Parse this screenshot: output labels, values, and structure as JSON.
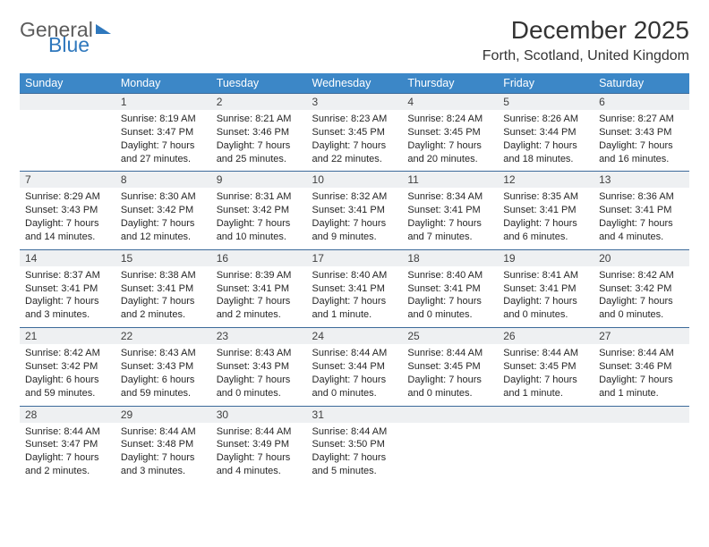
{
  "logo": {
    "text1": "General",
    "text2": "Blue"
  },
  "title": {
    "month": "December 2025",
    "location": "Forth, Scotland, United Kingdom"
  },
  "weekdays": [
    "Sunday",
    "Monday",
    "Tuesday",
    "Wednesday",
    "Thursday",
    "Friday",
    "Saturday"
  ],
  "colors": {
    "header_bg": "#3c87c7",
    "header_text": "#ffffff",
    "daynum_bg": "#eef0f2",
    "daynum_border": "#3c6a9a",
    "body_text": "#262626",
    "logo_gray": "#5c5c5c",
    "logo_blue": "#2f78bd"
  },
  "grid": [
    [
      null,
      {
        "n": "1",
        "sr": "8:19 AM",
        "ss": "3:47 PM",
        "dl": "7 hours and 27 minutes."
      },
      {
        "n": "2",
        "sr": "8:21 AM",
        "ss": "3:46 PM",
        "dl": "7 hours and 25 minutes."
      },
      {
        "n": "3",
        "sr": "8:23 AM",
        "ss": "3:45 PM",
        "dl": "7 hours and 22 minutes."
      },
      {
        "n": "4",
        "sr": "8:24 AM",
        "ss": "3:45 PM",
        "dl": "7 hours and 20 minutes."
      },
      {
        "n": "5",
        "sr": "8:26 AM",
        "ss": "3:44 PM",
        "dl": "7 hours and 18 minutes."
      },
      {
        "n": "6",
        "sr": "8:27 AM",
        "ss": "3:43 PM",
        "dl": "7 hours and 16 minutes."
      }
    ],
    [
      {
        "n": "7",
        "sr": "8:29 AM",
        "ss": "3:43 PM",
        "dl": "7 hours and 14 minutes."
      },
      {
        "n": "8",
        "sr": "8:30 AM",
        "ss": "3:42 PM",
        "dl": "7 hours and 12 minutes."
      },
      {
        "n": "9",
        "sr": "8:31 AM",
        "ss": "3:42 PM",
        "dl": "7 hours and 10 minutes."
      },
      {
        "n": "10",
        "sr": "8:32 AM",
        "ss": "3:41 PM",
        "dl": "7 hours and 9 minutes."
      },
      {
        "n": "11",
        "sr": "8:34 AM",
        "ss": "3:41 PM",
        "dl": "7 hours and 7 minutes."
      },
      {
        "n": "12",
        "sr": "8:35 AM",
        "ss": "3:41 PM",
        "dl": "7 hours and 6 minutes."
      },
      {
        "n": "13",
        "sr": "8:36 AM",
        "ss": "3:41 PM",
        "dl": "7 hours and 4 minutes."
      }
    ],
    [
      {
        "n": "14",
        "sr": "8:37 AM",
        "ss": "3:41 PM",
        "dl": "7 hours and 3 minutes."
      },
      {
        "n": "15",
        "sr": "8:38 AM",
        "ss": "3:41 PM",
        "dl": "7 hours and 2 minutes."
      },
      {
        "n": "16",
        "sr": "8:39 AM",
        "ss": "3:41 PM",
        "dl": "7 hours and 2 minutes."
      },
      {
        "n": "17",
        "sr": "8:40 AM",
        "ss": "3:41 PM",
        "dl": "7 hours and 1 minute."
      },
      {
        "n": "18",
        "sr": "8:40 AM",
        "ss": "3:41 PM",
        "dl": "7 hours and 0 minutes."
      },
      {
        "n": "19",
        "sr": "8:41 AM",
        "ss": "3:41 PM",
        "dl": "7 hours and 0 minutes."
      },
      {
        "n": "20",
        "sr": "8:42 AM",
        "ss": "3:42 PM",
        "dl": "7 hours and 0 minutes."
      }
    ],
    [
      {
        "n": "21",
        "sr": "8:42 AM",
        "ss": "3:42 PM",
        "dl": "6 hours and 59 minutes."
      },
      {
        "n": "22",
        "sr": "8:43 AM",
        "ss": "3:43 PM",
        "dl": "6 hours and 59 minutes."
      },
      {
        "n": "23",
        "sr": "8:43 AM",
        "ss": "3:43 PM",
        "dl": "7 hours and 0 minutes."
      },
      {
        "n": "24",
        "sr": "8:44 AM",
        "ss": "3:44 PM",
        "dl": "7 hours and 0 minutes."
      },
      {
        "n": "25",
        "sr": "8:44 AM",
        "ss": "3:45 PM",
        "dl": "7 hours and 0 minutes."
      },
      {
        "n": "26",
        "sr": "8:44 AM",
        "ss": "3:45 PM",
        "dl": "7 hours and 1 minute."
      },
      {
        "n": "27",
        "sr": "8:44 AM",
        "ss": "3:46 PM",
        "dl": "7 hours and 1 minute."
      }
    ],
    [
      {
        "n": "28",
        "sr": "8:44 AM",
        "ss": "3:47 PM",
        "dl": "7 hours and 2 minutes."
      },
      {
        "n": "29",
        "sr": "8:44 AM",
        "ss": "3:48 PM",
        "dl": "7 hours and 3 minutes."
      },
      {
        "n": "30",
        "sr": "8:44 AM",
        "ss": "3:49 PM",
        "dl": "7 hours and 4 minutes."
      },
      {
        "n": "31",
        "sr": "8:44 AM",
        "ss": "3:50 PM",
        "dl": "7 hours and 5 minutes."
      },
      null,
      null,
      null
    ]
  ],
  "labels": {
    "sunrise": "Sunrise: ",
    "sunset": "Sunset: ",
    "daylight": "Daylight: "
  }
}
